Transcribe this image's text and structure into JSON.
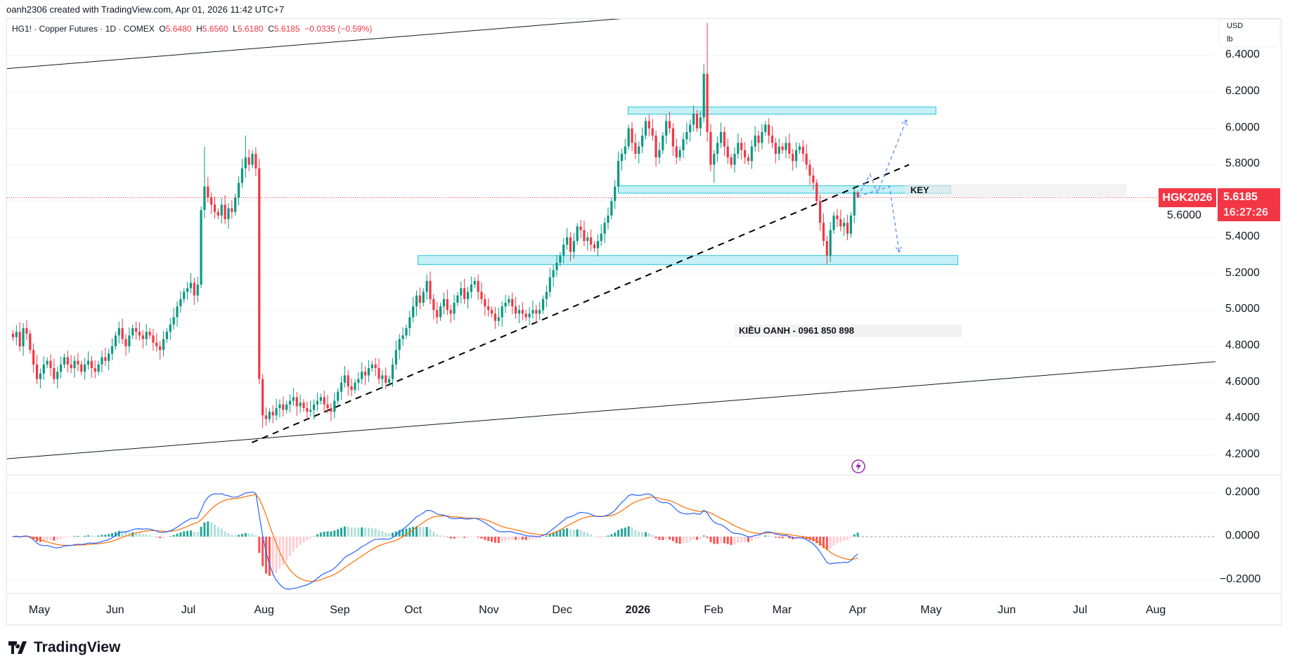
{
  "header": {
    "credit": "oanh2306 created with TradingView.com, Apr 01, 2026 11:42 UTC+7",
    "symbol_line": "HG1! · Copper Futures · 1D · COMEX",
    "ohlc": {
      "o_label": "O",
      "o": "5.6480",
      "h_label": "H",
      "h": "5.6560",
      "l_label": "L",
      "l": "5.6180",
      "c_label": "C",
      "c": "5.6185",
      "change": "−0.0335 (−0.59%)"
    }
  },
  "units": {
    "currency": "USD",
    "unit": "lb"
  },
  "price_axis": {
    "ticks": [
      "6.4000",
      "6.2000",
      "6.0000",
      "5.8000",
      "5.6000",
      "5.4000",
      "5.2000",
      "5.0000",
      "4.8000",
      "4.6000",
      "4.4000",
      "4.2000"
    ],
    "values": [
      6.4,
      6.2,
      6.0,
      5.8,
      5.6,
      5.4,
      5.2,
      5.0,
      4.8,
      4.6,
      4.4,
      4.2
    ]
  },
  "current_price": {
    "symbol": "HGK2026",
    "price": "5.6185",
    "countdown": "16:27:26",
    "value": 5.6185,
    "color": "#f23645"
  },
  "macd_axis": {
    "ticks": [
      "0.2000",
      "0.0000",
      "−0.2000"
    ],
    "values": [
      0.2,
      0,
      -0.2
    ]
  },
  "time_axis": {
    "labels": [
      "May",
      "Jun",
      "Jul",
      "Aug",
      "Sep",
      "Oct",
      "Nov",
      "Dec",
      "2026",
      "Feb",
      "Mar",
      "Apr",
      "May",
      "Jun",
      "Jul",
      "Aug"
    ],
    "dates": [
      "2025-05-01",
      "2025-06-01",
      "2025-07-01",
      "2025-08-01",
      "2025-09-01",
      "2025-10-01",
      "2025-11-01",
      "2025-12-01",
      "2026-01-01",
      "2026-02-01",
      "2026-03-01",
      "2026-04-01",
      "2026-05-01",
      "2026-06-01",
      "2026-07-01",
      "2026-08-01"
    ]
  },
  "colors": {
    "up": "#089981",
    "down": "#f23645",
    "macd": "#2962ff",
    "signal": "#ff6d00",
    "hist_up": "#26a69a",
    "hist_up_weak": "#b2dfdb",
    "hist_down": "#ff5252",
    "hist_down_weak": "#ffcdd2",
    "zone": "#b2ebf2",
    "zone_border": "#26c6da",
    "projection": "#5b8def"
  },
  "chart_data": {
    "type": "candlestick",
    "last_bar_date": "2026-04-01",
    "closes": [
      4.85,
      4.88,
      4.8,
      4.9,
      4.87,
      4.78,
      4.7,
      4.62,
      4.65,
      4.7,
      4.72,
      4.68,
      4.62,
      4.66,
      4.7,
      4.74,
      4.7,
      4.68,
      4.72,
      4.7,
      4.66,
      4.7,
      4.72,
      4.68,
      4.66,
      4.7,
      4.74,
      4.72,
      4.76,
      4.8,
      4.86,
      4.9,
      4.84,
      4.8,
      4.86,
      4.9,
      4.88,
      4.86,
      4.84,
      4.88,
      4.86,
      4.82,
      4.8,
      4.78,
      4.84,
      4.88,
      4.92,
      4.96,
      5.02,
      5.06,
      5.1,
      5.12,
      5.15,
      5.08,
      5.14,
      5.55,
      5.68,
      5.62,
      5.58,
      5.54,
      5.52,
      5.58,
      5.5,
      5.56,
      5.54,
      5.62,
      5.7,
      5.78,
      5.84,
      5.8,
      5.86,
      5.78,
      4.62,
      4.42,
      4.4,
      4.44,
      4.42,
      4.46,
      4.48,
      4.45,
      4.48,
      4.5,
      4.52,
      4.47,
      4.49,
      4.46,
      4.44,
      4.45,
      4.48,
      4.5,
      4.52,
      4.48,
      4.46,
      4.44,
      4.5,
      4.55,
      4.6,
      4.64,
      4.58,
      4.56,
      4.6,
      4.62,
      4.66,
      4.64,
      4.68,
      4.7,
      4.68,
      4.62,
      4.64,
      4.6,
      4.62,
      4.7,
      4.78,
      4.84,
      4.86,
      4.9,
      4.96,
      5.02,
      5.08,
      5.04,
      5.1,
      5.16,
      5.06,
      5.0,
      4.96,
      5.02,
      5.06,
      5.0,
      4.98,
      5.04,
      5.08,
      5.12,
      5.06,
      5.1,
      5.14,
      5.16,
      5.1,
      5.06,
      5.02,
      5.0,
      4.98,
      4.94,
      4.96,
      5.02,
      5.04,
      5.06,
      5.02,
      4.98,
      5.0,
      4.98,
      4.96,
      4.98,
      5.0,
      4.98,
      5.0,
      5.06,
      5.1,
      5.18,
      5.22,
      5.26,
      5.3,
      5.36,
      5.4,
      5.32,
      5.38,
      5.46,
      5.44,
      5.38,
      5.4,
      5.36,
      5.34,
      5.38,
      5.42,
      5.48,
      5.52,
      5.6,
      5.68,
      5.82,
      5.86,
      5.9,
      6.0,
      5.92,
      5.86,
      5.9,
      5.96,
      6.04,
      6.0,
      5.96,
      5.84,
      5.88,
      5.96,
      6.04,
      6.0,
      5.9,
      5.84,
      5.88,
      5.94,
      5.98,
      6.02,
      6.08,
      6.0,
      6.06,
      6.3,
      5.98,
      5.8,
      5.86,
      5.92,
      5.98,
      5.9,
      5.84,
      5.8,
      5.86,
      5.92,
      5.88,
      5.84,
      5.82,
      5.9,
      5.96,
      5.92,
      5.98,
      6.02,
      5.96,
      5.92,
      5.86,
      5.9,
      5.88,
      5.92,
      5.86,
      5.82,
      5.88,
      5.9,
      5.86,
      5.8,
      5.74,
      5.7,
      5.6,
      5.48,
      5.38,
      5.3,
      5.44,
      5.52,
      5.5,
      5.46,
      5.48,
      5.42,
      5.52,
      5.65,
      5.6185
    ],
    "extremes": [
      {
        "bar": 56,
        "high": 5.9
      },
      {
        "bar": 68,
        "high": 5.96
      },
      {
        "bar": 73,
        "low": 4.35
      },
      {
        "bar": 203,
        "high": 6.58
      },
      {
        "bar": 205,
        "low": 5.7
      },
      {
        "bar": 238,
        "low": 5.25
      },
      {
        "bar": 247,
        "open": 5.648,
        "high": 5.656,
        "low": 5.618
      }
    ],
    "y_range": [
      4.1,
      6.6
    ]
  },
  "drawings": {
    "channel_upper": [
      [
        "2025-04-17",
        6.328
      ],
      [
        "2025-12-27",
        6.606
      ]
    ],
    "channel_lower": [
      [
        "2025-04-17",
        4.18
      ],
      [
        "2026-08-25",
        4.715
      ]
    ],
    "trendline": [
      [
        "2025-07-27",
        4.27
      ],
      [
        "2026-04-22",
        5.8
      ]
    ],
    "zones": [
      {
        "name": "resistance",
        "from": "2025-12-28",
        "to": "2026-05-03",
        "top": 6.118,
        "bottom": 6.078
      },
      {
        "name": "key",
        "from": "2025-12-24",
        "to": "2026-05-09",
        "top": 5.684,
        "bottom": 5.643
      },
      {
        "name": "support",
        "from": "2025-10-03",
        "to": "2026-05-12",
        "top": 5.3,
        "bottom": 5.25
      }
    ],
    "projection_up": [
      [
        "2026-04-01",
        5.624
      ],
      [
        "2026-04-06",
        5.748
      ],
      [
        "2026-04-09",
        5.643
      ],
      [
        "2026-04-21",
        6.05
      ]
    ],
    "projection_down": [
      [
        "2026-04-01",
        5.624
      ],
      [
        "2026-04-14",
        5.68
      ],
      [
        "2026-04-18",
        5.315
      ]
    ],
    "key_label": "KEY",
    "author_note": "KIỀU OANH - 0961 850 898"
  },
  "branding": {
    "logo_text": "TradingView",
    "logo_icon": "tradingview-logo-icon",
    "event_icon": "lightning-icon"
  }
}
